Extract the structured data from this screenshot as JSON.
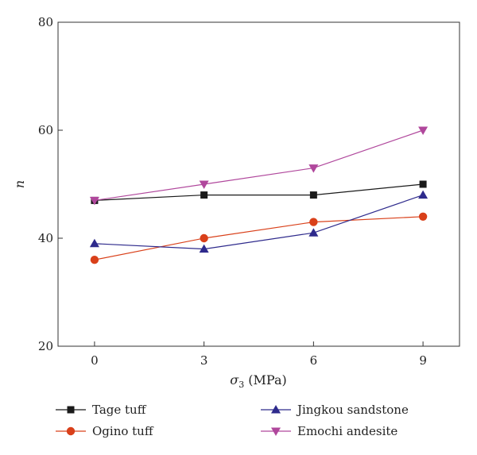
{
  "chart_data": {
    "type": "line",
    "x": [
      0,
      3,
      6,
      9
    ],
    "xlabel_symbol": "σ",
    "xlabel_sub": "3",
    "xlabel_unit": " (MPa)",
    "ylabel": "n",
    "xlim": [
      -1,
      10
    ],
    "ylim": [
      20,
      80
    ],
    "xticks": [
      0,
      3,
      6,
      9
    ],
    "yticks": [
      20,
      40,
      60,
      80
    ],
    "grid": false,
    "legend_position": "bottom",
    "series": [
      {
        "name": "Tage tuff",
        "values": [
          47,
          48,
          48,
          50
        ],
        "color": "#1a1a1a",
        "marker": "square"
      },
      {
        "name": "Ogino tuff",
        "values": [
          36,
          40,
          43,
          44
        ],
        "color": "#d9401a",
        "marker": "circle"
      },
      {
        "name": "Jingkou sandstone",
        "values": [
          39,
          38,
          41,
          48
        ],
        "color": "#2e2a8c",
        "marker": "triangle-up"
      },
      {
        "name": "Emochi andesite",
        "values": [
          47,
          50,
          53,
          60
        ],
        "color": "#b0479c",
        "marker": "triangle-down"
      }
    ]
  }
}
